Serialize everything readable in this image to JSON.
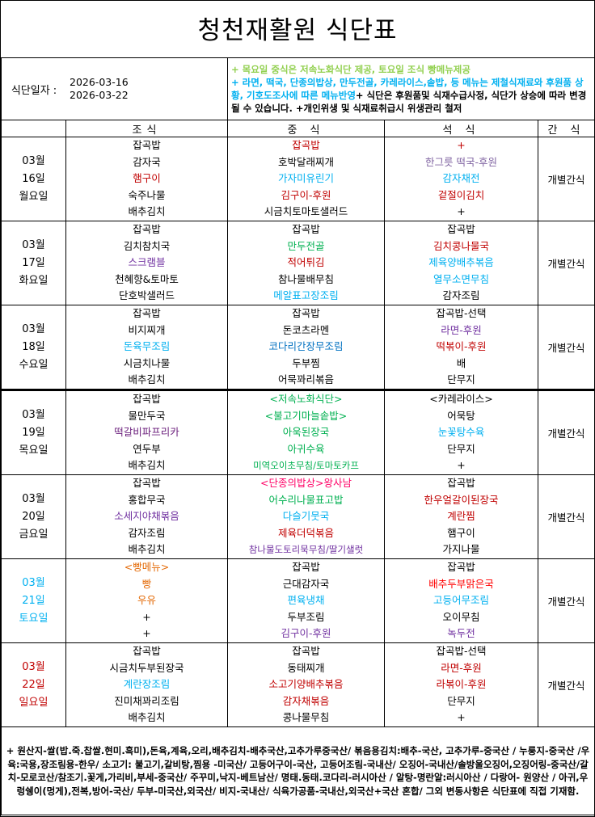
{
  "title": "청천재활원 식단표",
  "info": {
    "label": "식단일자 :",
    "date_from": "2026-03-16",
    "date_to": "2026-03-22",
    "note_green": "+ 목요일 중식은 저속노화식단 제공, 토요일 조식 빵메뉴제공",
    "note_cyan": "+ 라면, 떡국, 단종의밥상, 만두전골, 카레라이스,솥밥, 등 메뉴는 제철식재료와 후원품 상황, 기호도조사에 따른 메뉴반영",
    "note_black": "+ 식단은 후원품및 식재수급사정, 식단가 상승에 따라 변경 될 수 있습니다. +개인위생 및 식재료취급시 위생관리 철저"
  },
  "headers": [
    "조식",
    "중 식",
    "석 식",
    "간 식"
  ],
  "colors": {
    "black": "#000000",
    "red": "#c00000",
    "bright_red": "#ff0000",
    "cyan": "#00b0f0",
    "blue": "#0070c0",
    "purple": "#7030a0",
    "dark_purple": "#6b1f7c",
    "gray_purple": "#8064a2",
    "green": "#00b050",
    "light_green": "#92d050",
    "orange": "#e46c0a",
    "pink": "#ff0066"
  },
  "days": [
    {
      "month": "03월",
      "day": "16일",
      "weekday": "월요일",
      "color": "black",
      "snack": "개별간식",
      "breakfast": [
        [
          "잡곡밥",
          "black"
        ],
        [
          "감자국",
          "black"
        ],
        [
          "햄구이",
          "red"
        ],
        [
          "숙주나물",
          "black"
        ],
        [
          "배추김치",
          "black"
        ]
      ],
      "lunch": [
        [
          "잡곡밥",
          "red"
        ],
        [
          "호박달래찌개",
          "black"
        ],
        [
          "가자미유린기",
          "cyan"
        ],
        [
          "김구이-후원",
          "red"
        ],
        [
          "시금치토마토샐러드",
          "black"
        ]
      ],
      "dinner": [
        [
          "+",
          "red"
        ],
        [
          "한그릇 떡국-후원",
          "gray_purple"
        ],
        [
          "감자채전",
          "cyan"
        ],
        [
          "겉절이김치",
          "red"
        ],
        [
          "+",
          "black"
        ]
      ]
    },
    {
      "month": "03월",
      "day": "17일",
      "weekday": "화요일",
      "color": "black",
      "snack": "개별간식",
      "breakfast": [
        [
          "잡곡밥",
          "black"
        ],
        [
          "김치참치국",
          "black"
        ],
        [
          "스크램블",
          "purple"
        ],
        [
          "천혜향&토마토",
          "black"
        ],
        [
          "단호박샐러드",
          "black"
        ]
      ],
      "lunch": [
        [
          "잡곡밥",
          "black"
        ],
        [
          "만두전골",
          "green"
        ],
        [
          "적어튀김",
          "red"
        ],
        [
          "참나물배무침",
          "black"
        ],
        [
          "메알표고장조림",
          "cyan"
        ]
      ],
      "dinner": [
        [
          "잡곡밥",
          "black"
        ],
        [
          "김치콩나물국",
          "red"
        ],
        [
          "제육양배추볶음",
          "cyan"
        ],
        [
          "열무소면무침",
          "cyan"
        ],
        [
          "감자조림",
          "black"
        ]
      ]
    },
    {
      "month": "03월",
      "day": "18일",
      "weekday": "수요일",
      "color": "black",
      "snack": "개별간식",
      "breakfast": [
        [
          "잡곡밥",
          "black"
        ],
        [
          "비지찌개",
          "black"
        ],
        [
          "돈육무조림",
          "cyan"
        ],
        [
          "시금치나물",
          "black"
        ],
        [
          "배추김치",
          "black"
        ]
      ],
      "lunch": [
        [
          "잡곡밥",
          "black"
        ],
        [
          "돈코츠라멘",
          "black"
        ],
        [
          "코다리간장무조림",
          "blue"
        ],
        [
          "두부찜",
          "black"
        ],
        [
          "어묵꽈리볶음",
          "black"
        ]
      ],
      "dinner": [
        [
          "잡곡밥-선택",
          "black"
        ],
        [
          "라면-후원",
          "purple"
        ],
        [
          "떡볶이-후원",
          "red"
        ],
        [
          "배",
          "black"
        ],
        [
          "단무지",
          "black"
        ]
      ]
    },
    {
      "month": "03월",
      "day": "19일",
      "weekday": "목요일",
      "color": "black",
      "snack": "개별간식",
      "breakfast": [
        [
          "잡곡밥",
          "black"
        ],
        [
          "물만두국",
          "black"
        ],
        [
          "떡갈비파프리카",
          "dark_purple"
        ],
        [
          "연두부",
          "black"
        ],
        [
          "배추김치",
          "black"
        ]
      ],
      "lunch": [
        [
          "<저속노화식단>",
          "green"
        ],
        [
          "<불고기마늘솥밥>",
          "green"
        ],
        [
          "아욱된장국",
          "green"
        ],
        [
          "아귀수육",
          "green"
        ],
        [
          "미역오이초무침/토마토카프",
          "green"
        ]
      ],
      "dinner": [
        [
          "<카레라이스>",
          "black"
        ],
        [
          "어묵탕",
          "black"
        ],
        [
          "눈꽃탕수육",
          "cyan"
        ],
        [
          "단무지",
          "black"
        ],
        [
          "+",
          "black"
        ]
      ]
    },
    {
      "month": "03월",
      "day": "20일",
      "weekday": "금요일",
      "color": "black",
      "snack": "개별간식",
      "breakfast": [
        [
          "잡곡밥",
          "black"
        ],
        [
          "홍합무국",
          "black"
        ],
        [
          "소세지야채볶음",
          "purple"
        ],
        [
          "감자조림",
          "black"
        ],
        [
          "배추김치",
          "black"
        ]
      ],
      "lunch": [
        [
          "<단종의밥상>왕사남",
          "pink"
        ],
        [
          "어수리나물표고밥",
          "green"
        ],
        [
          "다슬기뭇국",
          "cyan"
        ],
        [
          "제육더덕볶음",
          "red"
        ],
        [
          "참나물도토리묵무침/딸기샐럿",
          "purple"
        ]
      ],
      "dinner": [
        [
          "잡곡밥",
          "black"
        ],
        [
          "한우얼갈이된장국",
          "red"
        ],
        [
          "계란찜",
          "red"
        ],
        [
          "햄구이",
          "black"
        ],
        [
          "가지나물",
          "black"
        ]
      ]
    },
    {
      "month": "03월",
      "day": "21일",
      "weekday": "토요일",
      "color": "cyan",
      "snack": "개별간식",
      "breakfast": [
        [
          "<빵메뉴>",
          "orange"
        ],
        [
          "빵",
          "orange"
        ],
        [
          "우유",
          "orange"
        ],
        [
          "+",
          "black"
        ],
        [
          "+",
          "black"
        ]
      ],
      "lunch": [
        [
          "잡곡밥",
          "black"
        ],
        [
          "근대감자국",
          "black"
        ],
        [
          "편육냉채",
          "cyan"
        ],
        [
          "두부조림",
          "black"
        ],
        [
          "김구이-후원",
          "purple"
        ]
      ],
      "dinner": [
        [
          "잡곡밥",
          "black"
        ],
        [
          "배추두부맑은국",
          "bright_red"
        ],
        [
          "고등어무조림",
          "cyan"
        ],
        [
          "오이무침",
          "black"
        ],
        [
          "녹두전",
          "purple"
        ]
      ]
    },
    {
      "month": "03월",
      "day": "22일",
      "weekday": "일요일",
      "color": "red",
      "snack": "개별간식",
      "breakfast": [
        [
          "잡곡밥",
          "black"
        ],
        [
          "시금치두부된장국",
          "black"
        ],
        [
          "계란장조림",
          "cyan"
        ],
        [
          "진미채꽈리조림",
          "black"
        ],
        [
          "배추김치",
          "black"
        ]
      ],
      "lunch": [
        [
          "잡곡밥",
          "black"
        ],
        [
          "동태찌개",
          "black"
        ],
        [
          "소고기양배추볶음",
          "red"
        ],
        [
          "감자채볶음",
          "red"
        ],
        [
          "콩나물무침",
          "black"
        ]
      ],
      "dinner": [
        [
          "잡곡밥-선택",
          "black"
        ],
        [
          "라면-후원",
          "red"
        ],
        [
          "라볶이-후원",
          "red"
        ],
        [
          "단무지",
          "black"
        ],
        [
          "+",
          "black"
        ]
      ]
    }
  ],
  "footer": "+ 원산지-쌀(밥.죽.찹쌀.현미.흑미),돈육,계육,오리,배추김치-배추국산,고추가루중국산/ 볶음용김치:배추-국산, 고추가루-중국산 / 누룽지-중국산 /우육:국용,장조림용-한우/ 소고기: 불고기,갈비탕,찜용 -미국산/ 고등어구이-국산, 고등어조림-국내산/ 오징어-국내산/솔방울오징어,오징어링-중국산/갈치-모로코산/참조기.꽃게,가리비,부세-중국산/ 주꾸미,낙지-베트남산/ 명태.동태.코다리-러시아산 / 알탕-명란알:러시아산 / 다랑어- 원양산 / 아귀,우렁쉥이(멍게),전복,방어-국산/ 두부-미국산,외국산/ 비지-국내산/ 식육가공품-국내산,외국산+국산 혼합/ 그외 변동사항은 식단표에 직접 기재함."
}
